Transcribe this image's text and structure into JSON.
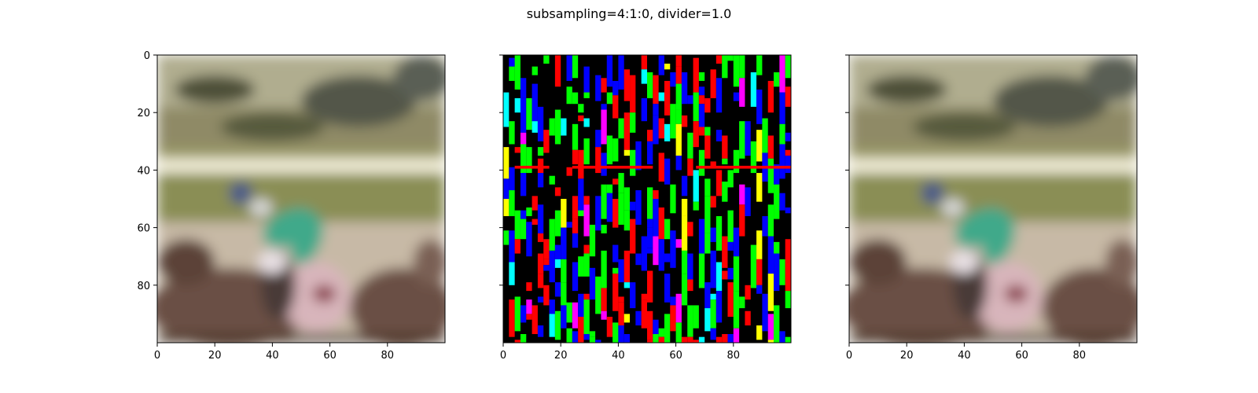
{
  "figure": {
    "title": "subsampling=4:1:0, divider=1.0"
  },
  "chart_data": [
    {
      "type": "heatmap",
      "panel": "left",
      "content": "photo",
      "xlim": [
        0,
        100
      ],
      "ylim": [
        100,
        0
      ],
      "xticks": [
        0,
        20,
        40,
        60,
        80
      ],
      "yticks": [
        0,
        20,
        40,
        60,
        80
      ],
      "show_ytick_labels": true
    },
    {
      "type": "heatmap",
      "panel": "middle",
      "content": "difference",
      "xlim": [
        0,
        100
      ],
      "ylim": [
        100,
        0
      ],
      "xticks": [
        0,
        20,
        40,
        60,
        80
      ],
      "yticks": [
        0,
        20,
        40,
        60,
        80
      ],
      "show_ytick_labels": false,
      "colors": {
        "background": "#000000",
        "red": "#ff0000",
        "green": "#00ff00",
        "blue": "#0000ff",
        "magenta": "#ff00ff",
        "cyan": "#00ffff",
        "yellow": "#ffff00"
      }
    },
    {
      "type": "heatmap",
      "panel": "right",
      "content": "photo",
      "xlim": [
        0,
        100
      ],
      "ylim": [
        100,
        0
      ],
      "xticks": [
        0,
        20,
        40,
        60,
        80
      ],
      "yticks": [
        0,
        20,
        40,
        60,
        80
      ],
      "show_ytick_labels": false
    }
  ],
  "colors": {
    "sky_top": "#b0ad8f",
    "sky_mid": "#8f8a66",
    "grass": "#8a8e55",
    "rail": "#f2eed8",
    "track": "#c7b9a6",
    "horse": "#6b4f45",
    "jockey": "#3fa98a",
    "helmet": "#4a5a8a",
    "saddle": "#d8b5bb"
  }
}
